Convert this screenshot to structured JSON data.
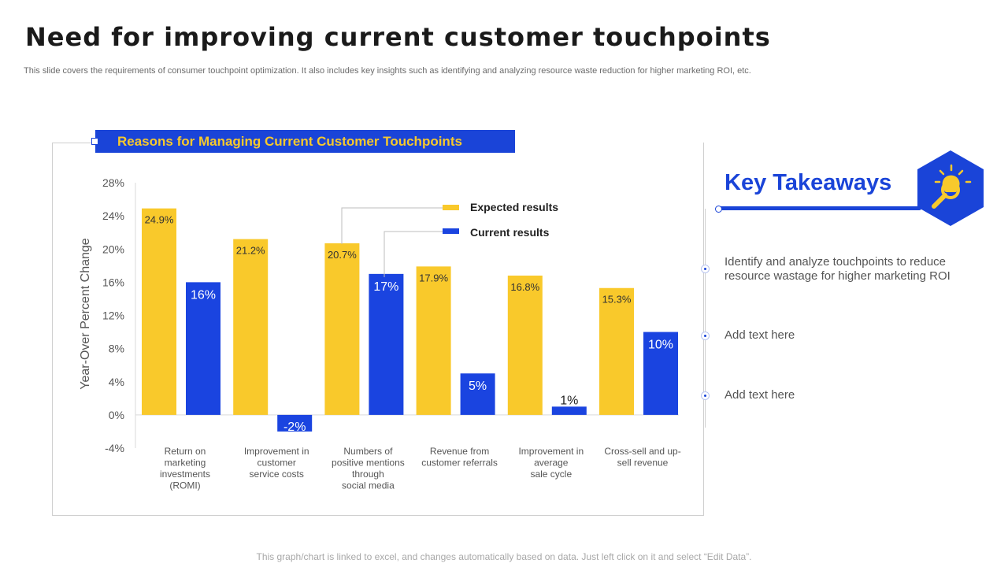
{
  "slide": {
    "title": "Need for improving current customer touchpoints",
    "subtitle": "This slide covers the requirements of consumer touchpoint optimization. It also includes key insights such as identifying and analyzing resource waste reduction for higher marketing ROI, etc.",
    "footer": "This graph/chart is linked to excel, and changes automatically based on data. Just left click on it and select “Edit Data”."
  },
  "chart_banner": "Reasons for Managing Current Customer Touchpoints",
  "key_takeaways": {
    "title": "Key Takeaways",
    "icon": "lightbulb-magnifier-icon",
    "items": [
      "Identify and analyze  touchpoints to reduce resource wastage for higher marketing ROI",
      "Add text here",
      "Add text here"
    ]
  },
  "colors": {
    "expected": "#f9c92b",
    "current": "#1a44e0",
    "accent": "#1a44d8"
  },
  "chart_data": {
    "type": "bar",
    "categories": [
      [
        "Return on",
        "marketing",
        "investments",
        "(ROMI)"
      ],
      [
        "Improvement in",
        "customer",
        "service costs"
      ],
      [
        "Numbers of",
        "positive mentions",
        "through",
        "social media"
      ],
      [
        "Revenue from",
        "customer referrals"
      ],
      [
        "Improvement in",
        "average",
        "sale cycle"
      ],
      [
        "Cross-sell and up-",
        "sell revenue"
      ]
    ],
    "series": [
      {
        "name": "Expected results",
        "values": [
          24.9,
          21.2,
          20.7,
          17.9,
          16.8,
          15.3
        ],
        "labels": [
          "24.9%",
          "21.2%",
          "20.7%",
          "17.9%",
          "16.8%",
          "15.3%"
        ]
      },
      {
        "name": "Current results",
        "values": [
          16,
          -2,
          17,
          5,
          1,
          10
        ],
        "labels": [
          "16%",
          "-2%",
          "17%",
          "5%",
          "1%",
          "10%"
        ]
      }
    ],
    "ylabel": "Year-Over  Percent Change",
    "ylim": [
      -4,
      28
    ],
    "yticks": [
      -4,
      0,
      4,
      8,
      12,
      16,
      20,
      24,
      28
    ],
    "ytick_labels": [
      "-4%",
      "0%",
      "4%",
      "8%",
      "12%",
      "16%",
      "20%",
      "24%",
      "28%"
    ],
    "grid": false,
    "legend_position": "top-center"
  }
}
